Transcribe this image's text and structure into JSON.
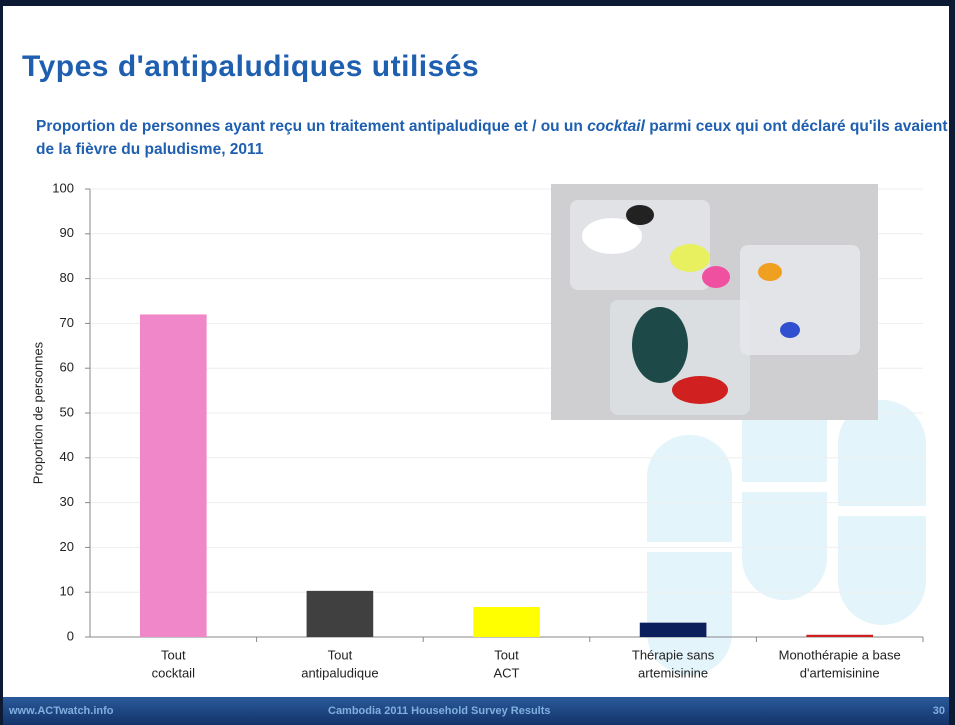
{
  "title": "Types d'antipaludiques utilisés",
  "footer": {
    "url": "www.ACTwatch.info",
    "title": "Cambodia 2011 Household Survey Results",
    "page": "30"
  },
  "chart_data": {
    "type": "bar",
    "subtitle": [
      "Proportion de personnes ayant reçu un traitement antipaludique et / ou un ",
      "cocktail",
      " parmi ceux qui ont déclaré qu'ils avaient de la fièvre du paludisme, 2011"
    ],
    "y_label": "Proportion de personnes",
    "categories": [
      [
        "Tout",
        "cocktail"
      ],
      [
        "Tout",
        "antipaludique"
      ],
      [
        "Tout",
        "ACT"
      ],
      [
        "Thérapie sans",
        "artemisinine"
      ],
      [
        "Monothérapie a base",
        "d'artemisinine"
      ]
    ],
    "values": [
      72,
      10.3,
      6.7,
      3.2,
      0.5
    ],
    "colors": [
      "#f087c8",
      "#404040",
      "#ffff00",
      "#0a1f5c",
      "#cc2020"
    ],
    "ylim": [
      0,
      100
    ],
    "yticks": [
      0,
      10,
      20,
      30,
      40,
      50,
      60,
      70,
      80,
      90,
      100
    ],
    "grid": true
  }
}
